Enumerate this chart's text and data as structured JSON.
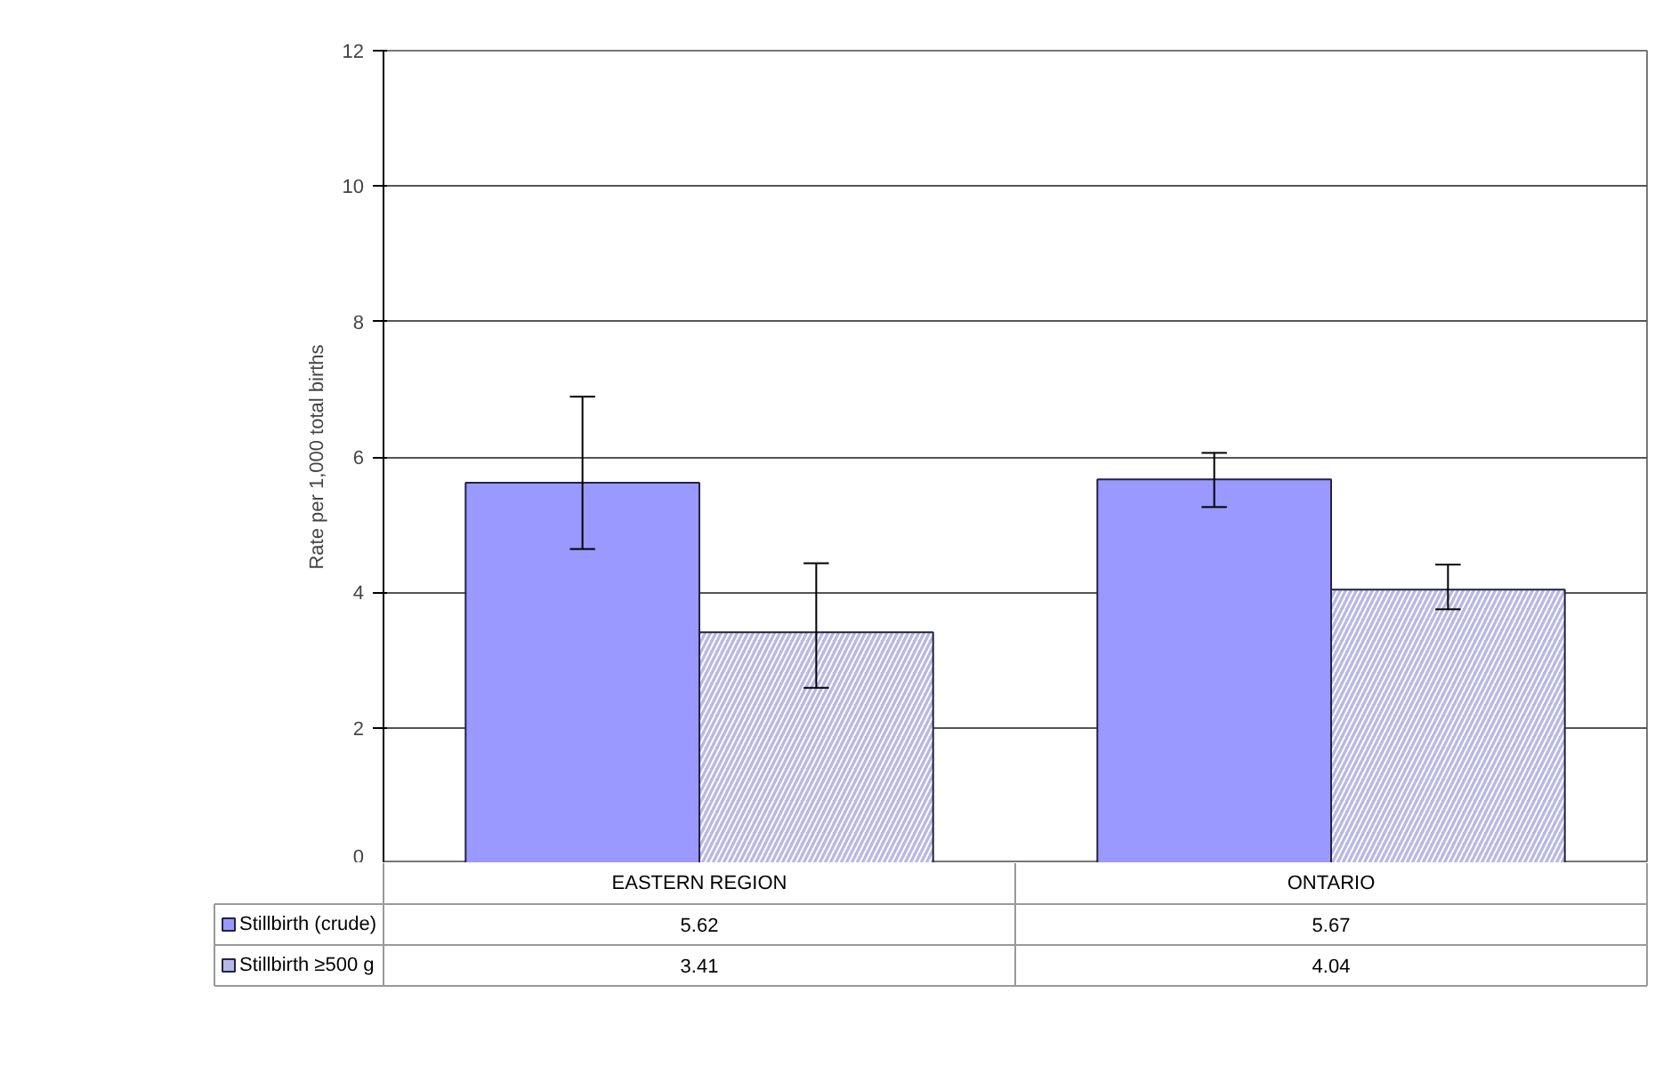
{
  "chart_data": {
    "type": "bar",
    "ylabel": "Rate per 1,000 total births",
    "categories": [
      "EASTERN REGION",
      "ONTARIO"
    ],
    "series": [
      {
        "name": "Stillbirth (crude)",
        "color": "#9999ff",
        "values": [
          5.62,
          5.67
        ],
        "errors": [
          [
            4.64,
            6.89
          ],
          [
            5.26,
            6.06
          ]
        ]
      },
      {
        "name": "Stillbirth ≥500 g",
        "color": "#b8b8e6",
        "values": [
          3.41,
          4.04
        ],
        "errors": [
          [
            2.59,
            4.43
          ],
          [
            3.75,
            4.41
          ]
        ]
      }
    ],
    "ylim": [
      0,
      12
    ],
    "yticks": [
      0,
      2,
      4,
      6,
      8,
      10,
      12
    ],
    "grid": "y",
    "data_labels": true,
    "legend": "bottom left"
  }
}
